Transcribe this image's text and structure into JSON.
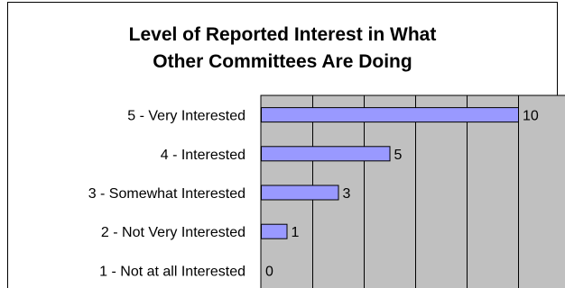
{
  "chart_data": {
    "type": "bar",
    "orientation": "horizontal",
    "title_lines": [
      "Level of Reported Interest in What",
      "Other Committees Are Doing"
    ],
    "categories": [
      "5 - Very Interested",
      "4 - Interested",
      "3 - Somewhat Interested",
      "2 - Not Very Interested",
      "1 - Not at all Interested"
    ],
    "values": [
      10,
      5,
      3,
      1,
      0
    ],
    "xlim": [
      0,
      12
    ],
    "x_gridline_step": 2,
    "grid": true,
    "legend": "none",
    "colors": {
      "bar_fill": "#9999ff",
      "bar_stroke": "#000000",
      "plot_background": "#c0c0c0",
      "gridline": "#000000"
    }
  }
}
